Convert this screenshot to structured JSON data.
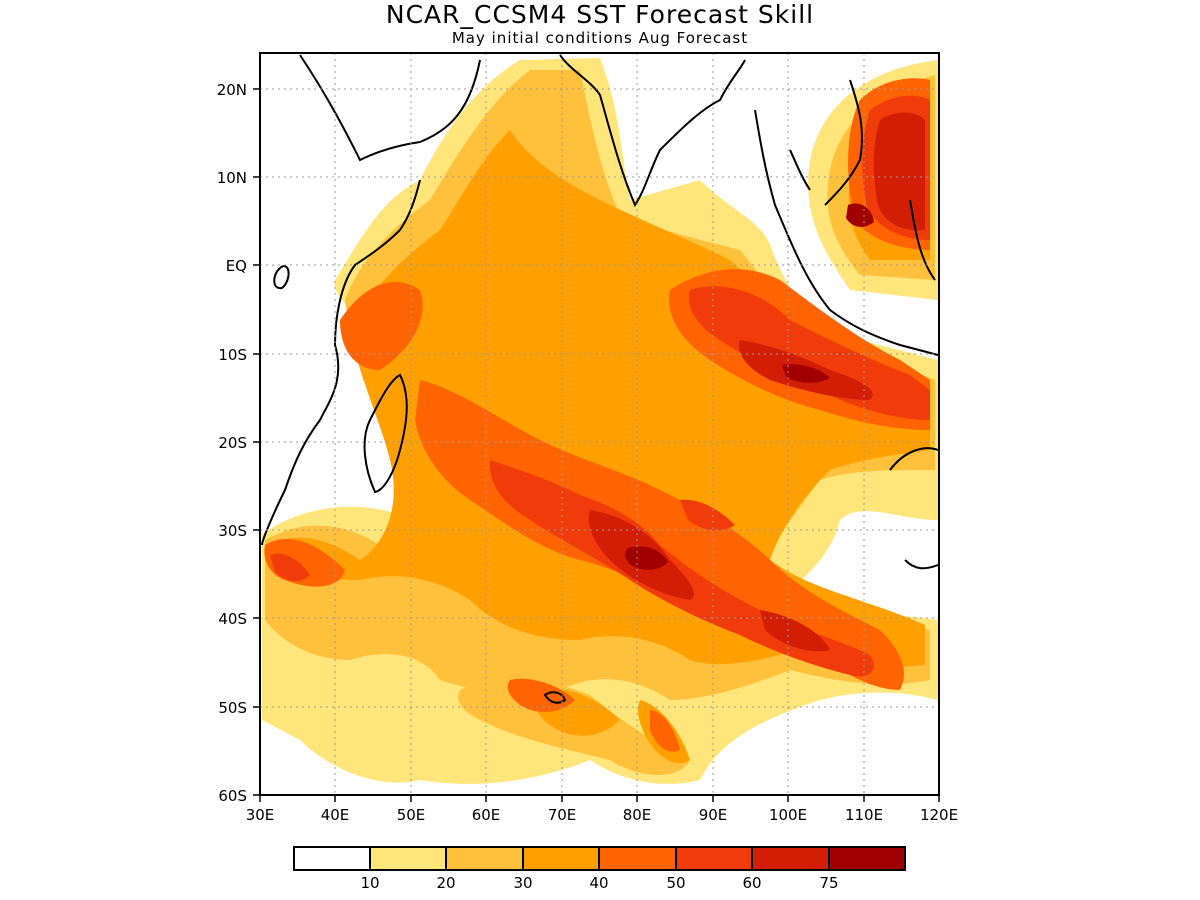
{
  "title": "NCAR_CCSM4 SST Forecast Skill",
  "subtitle": "May initial conditions  Aug Forecast",
  "map": {
    "region": "Indian Ocean",
    "lon_range": [
      30,
      120
    ],
    "lat_range": [
      -60,
      24
    ],
    "lon_ticks": [
      "30E",
      "40E",
      "50E",
      "60E",
      "70E",
      "80E",
      "90E",
      "100E",
      "110E",
      "120E"
    ],
    "lat_ticks": [
      "20N",
      "10N",
      "EQ",
      "10S",
      "20S",
      "30S",
      "40S",
      "50S",
      "60S"
    ],
    "grid": true
  },
  "colorbar": {
    "colors": [
      "#ffffff",
      "#ffe57a",
      "#ffc03c",
      "#ffa000",
      "#ff6400",
      "#f03c0a",
      "#d21e05",
      "#a00000"
    ],
    "labels": [
      "10",
      "20",
      "30",
      "40",
      "50",
      "60",
      "75"
    ]
  }
}
